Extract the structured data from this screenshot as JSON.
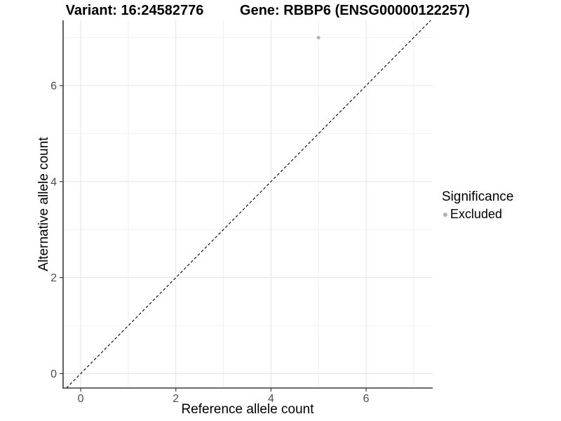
{
  "titles": {
    "variant": "Variant: 16:24582776",
    "gene": "Gene: RBBP6 (ENSG00000122257)"
  },
  "legend": {
    "title": "Significance",
    "items": [
      {
        "label": "Excluded",
        "color": "#b3b3b3"
      }
    ]
  },
  "chart_data": {
    "type": "scatter",
    "title": "Variant: 16:24582776 — Gene: RBBP6 (ENSG00000122257)",
    "xlabel": "Reference allele count",
    "ylabel": "Alternative allele count",
    "xlim": [
      -0.37,
      7.4
    ],
    "ylim": [
      -0.3,
      7.36
    ],
    "x_major_ticks": [
      0,
      2,
      4,
      6
    ],
    "y_major_ticks": [
      0,
      2,
      4,
      6
    ],
    "x_minor_ticks": [
      1,
      3,
      5,
      7
    ],
    "y_minor_ticks": [
      1,
      3,
      5,
      7
    ],
    "grid": true,
    "legend_position": "right",
    "series": [
      {
        "name": "Excluded",
        "color": "#b3b3b3",
        "points": [
          {
            "x": 5,
            "y": 7
          }
        ]
      }
    ],
    "reference_line": {
      "kind": "identity",
      "equation": "y = x",
      "style": "dashed",
      "color": "#000000"
    },
    "colors": {
      "grid_major": "#e4e4e4",
      "grid_minor": "#f0f0f0",
      "axis_line": "#3a3a3a",
      "tick_mark": "#3a3a3a",
      "tick_label": "#4d4d4d",
      "background": "#ffffff"
    }
  }
}
